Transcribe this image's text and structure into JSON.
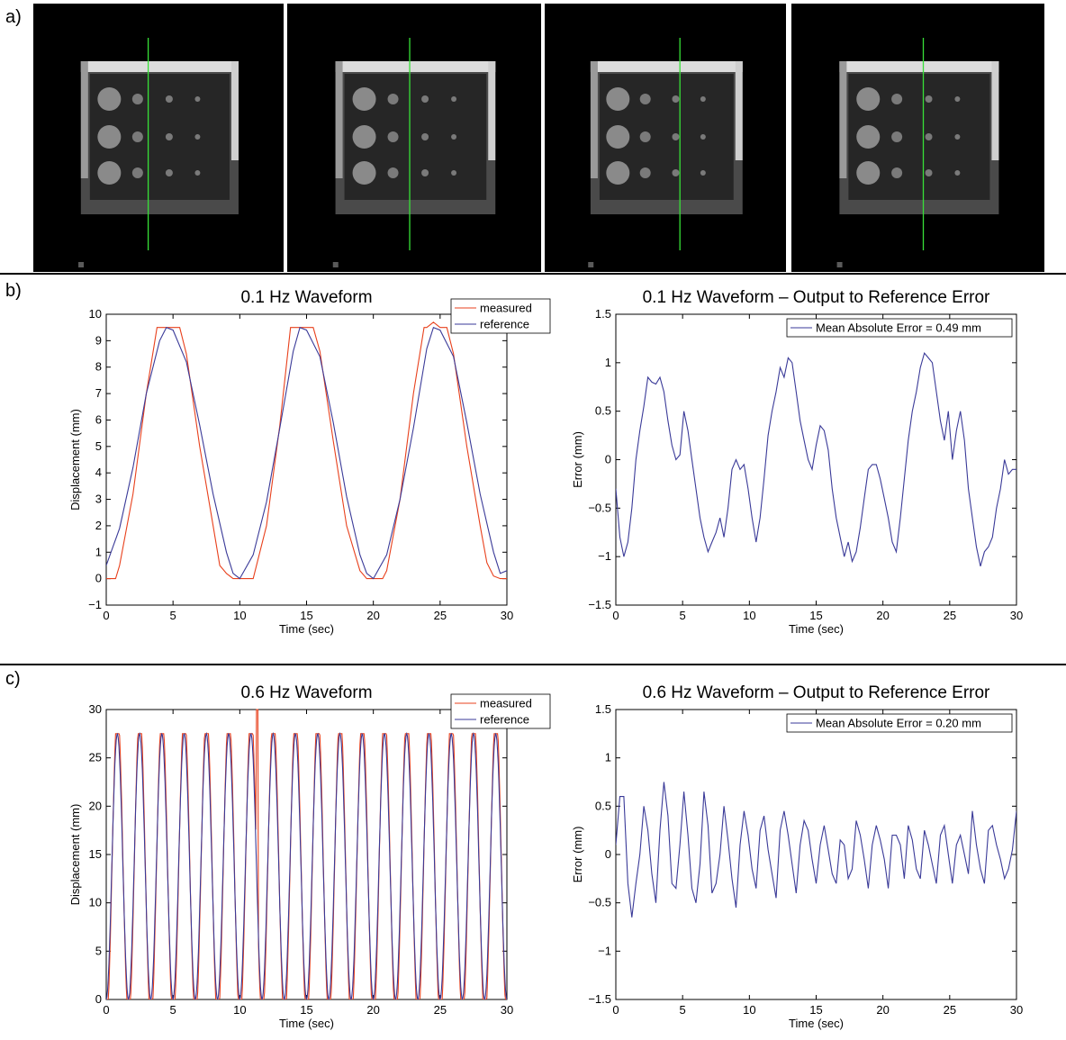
{
  "panels": {
    "a": "a)",
    "b": "b)",
    "c": "c)"
  },
  "mri_images": [
    {
      "green_line_pos": 0.55
    },
    {
      "green_line_pos": 0.58
    },
    {
      "green_line_pos": 0.68
    },
    {
      "green_line_pos": 0.63
    }
  ],
  "colors": {
    "measured": "#e8401c",
    "reference": "#3a3a98",
    "marker": "#38e038"
  },
  "chart_data": [
    {
      "id": "b-left",
      "type": "line",
      "title": "0.1 Hz Waveform",
      "xlabel": "Time (sec)",
      "ylabel": "Displacement (mm)",
      "xlim": [
        0,
        30
      ],
      "ylim": [
        -1,
        10
      ],
      "xticks": [
        "0",
        "5",
        "10",
        "15",
        "20",
        "25",
        "30"
      ],
      "yticks": [
        "−1",
        "0",
        "1",
        "2",
        "3",
        "4",
        "5",
        "6",
        "7",
        "8",
        "9",
        "10"
      ],
      "legend": {
        "position": "top-right",
        "entries": [
          "measured",
          "reference"
        ]
      },
      "series": [
        {
          "name": "measured",
          "x": [
            0,
            0.7,
            1,
            2,
            3,
            3.8,
            4,
            4.5,
            5,
            5.5,
            6,
            7,
            8,
            8.5,
            9,
            9.5,
            10,
            10.5,
            11,
            12,
            13,
            13.8,
            14,
            15,
            15.5,
            16,
            17,
            18,
            19,
            19.5,
            20,
            20.7,
            21,
            22,
            23,
            23.8,
            24,
            24.5,
            25,
            25.5,
            26,
            27,
            28,
            28.5,
            29,
            29.5,
            30
          ],
          "y": [
            0,
            0,
            0.5,
            3.2,
            7.0,
            9.5,
            9.5,
            9.5,
            9.5,
            9.5,
            8.5,
            5.0,
            2.0,
            0.5,
            0.2,
            0,
            0,
            0,
            0,
            2.0,
            5.8,
            9.5,
            9.5,
            9.5,
            9.5,
            8.6,
            5.2,
            2.0,
            0.3,
            0,
            0,
            0,
            0.3,
            3.0,
            7.0,
            9.5,
            9.5,
            9.7,
            9.5,
            9.5,
            8.5,
            5.0,
            2.0,
            0.6,
            0.1,
            0,
            0
          ]
        },
        {
          "name": "reference",
          "x": [
            0,
            1,
            2,
            3,
            4,
            4.5,
            5,
            6,
            7,
            8,
            9,
            9.5,
            10,
            11,
            12,
            13,
            14,
            14.5,
            15,
            16,
            17,
            18,
            19,
            19.5,
            20,
            21,
            22,
            23,
            24,
            24.5,
            25,
            26,
            27,
            28,
            29,
            29.5,
            30
          ],
          "y": [
            0.5,
            1.9,
            4.2,
            7.0,
            9.0,
            9.5,
            9.4,
            8.2,
            5.8,
            3.2,
            1.0,
            0.2,
            0,
            0.9,
            2.9,
            5.7,
            8.6,
            9.5,
            9.4,
            8.4,
            5.9,
            3.1,
            0.9,
            0.2,
            0,
            0.9,
            3.0,
            5.7,
            8.7,
            9.5,
            9.4,
            8.4,
            5.9,
            3.2,
            1.0,
            0.2,
            0.3
          ]
        }
      ]
    },
    {
      "id": "b-right",
      "type": "line",
      "title": "0.1 Hz Waveform – Output to Reference Error",
      "xlabel": "Time (sec)",
      "ylabel": "Error (mm)",
      "xlim": [
        0,
        30
      ],
      "ylim": [
        -1.5,
        1.5
      ],
      "xticks": [
        "0",
        "5",
        "10",
        "15",
        "20",
        "25",
        "30"
      ],
      "yticks": [
        "−1.5",
        "−1",
        "−0.5",
        "0",
        "0.5",
        "1",
        "1.5"
      ],
      "legend": {
        "position": "top-right",
        "entries": [
          "Mean Absolute Error = 0.49 mm"
        ]
      },
      "series": [
        {
          "name": "Mean Absolute Error = 0.49 mm",
          "x": [
            0,
            0.3,
            0.6,
            0.9,
            1.2,
            1.5,
            1.8,
            2.1,
            2.4,
            2.7,
            3.0,
            3.3,
            3.6,
            3.9,
            4.2,
            4.5,
            4.8,
            5.1,
            5.4,
            5.7,
            6.0,
            6.3,
            6.6,
            6.9,
            7.2,
            7.5,
            7.8,
            8.1,
            8.4,
            8.7,
            9.0,
            9.3,
            9.6,
            9.9,
            10.2,
            10.5,
            10.8,
            11.1,
            11.4,
            11.7,
            12.0,
            12.3,
            12.6,
            12.9,
            13.2,
            13.5,
            13.8,
            14.1,
            14.4,
            14.7,
            15.0,
            15.3,
            15.6,
            15.9,
            16.2,
            16.5,
            16.8,
            17.1,
            17.4,
            17.7,
            18.0,
            18.3,
            18.6,
            18.9,
            19.2,
            19.5,
            19.8,
            20.1,
            20.4,
            20.7,
            21.0,
            21.3,
            21.6,
            21.9,
            22.2,
            22.5,
            22.8,
            23.1,
            23.4,
            23.7,
            24.0,
            24.3,
            24.6,
            24.9,
            25.2,
            25.5,
            25.8,
            26.1,
            26.4,
            26.7,
            27.0,
            27.3,
            27.6,
            27.9,
            28.2,
            28.5,
            28.8,
            29.1,
            29.4,
            29.7,
            30
          ],
          "y": [
            -0.3,
            -0.8,
            -1.0,
            -0.85,
            -0.5,
            0.0,
            0.3,
            0.55,
            0.85,
            0.8,
            0.78,
            0.85,
            0.7,
            0.4,
            0.15,
            0.0,
            0.05,
            0.5,
            0.3,
            0.0,
            -0.3,
            -0.6,
            -0.8,
            -0.95,
            -0.85,
            -0.75,
            -0.6,
            -0.8,
            -0.5,
            -0.1,
            0.0,
            -0.1,
            -0.05,
            -0.3,
            -0.6,
            -0.85,
            -0.6,
            -0.2,
            0.25,
            0.5,
            0.7,
            0.95,
            0.85,
            1.05,
            1.0,
            0.7,
            0.4,
            0.2,
            0.0,
            -0.1,
            0.15,
            0.35,
            0.3,
            0.1,
            -0.3,
            -0.6,
            -0.8,
            -1.0,
            -0.85,
            -1.05,
            -0.95,
            -0.7,
            -0.4,
            -0.1,
            -0.05,
            -0.05,
            -0.2,
            -0.4,
            -0.6,
            -0.85,
            -0.95,
            -0.6,
            -0.2,
            0.2,
            0.5,
            0.7,
            0.95,
            1.1,
            1.05,
            1.0,
            0.7,
            0.4,
            0.2,
            0.5,
            0.0,
            0.3,
            0.5,
            0.2,
            -0.3,
            -0.6,
            -0.9,
            -1.1,
            -0.95,
            -0.9,
            -0.8,
            -0.5,
            -0.3,
            0.0,
            -0.15,
            -0.1,
            -0.1
          ]
        }
      ]
    },
    {
      "id": "c-left",
      "type": "line",
      "title": "0.6 Hz Waveform",
      "xlabel": "Time (sec)",
      "ylabel": "Displacement (mm)",
      "xlim": [
        0,
        30
      ],
      "ylim": [
        0,
        30
      ],
      "xticks": [
        "0",
        "5",
        "10",
        "15",
        "20",
        "25",
        "30"
      ],
      "yticks": [
        "0",
        "5",
        "10",
        "15",
        "20",
        "25",
        "30"
      ],
      "legend": {
        "position": "top-right",
        "entries": [
          "measured",
          "reference"
        ]
      },
      "waveform": {
        "frequency_hz": 0.6,
        "amplitude": 13.75,
        "offset": 13.75,
        "peak": 27.5,
        "spike_time": 11.3,
        "spike_value": 30
      }
    },
    {
      "id": "c-right",
      "type": "line",
      "title": "0.6 Hz Waveform – Output to Reference Error",
      "xlabel": "Time (sec)",
      "ylabel": "Error (mm)",
      "xlim": [
        0,
        30
      ],
      "ylim": [
        -1.5,
        1.5
      ],
      "xticks": [
        "0",
        "5",
        "10",
        "15",
        "20",
        "25",
        "30"
      ],
      "yticks": [
        "−1.5",
        "−1",
        "−0.5",
        "0",
        "0.5",
        "1",
        "1.5"
      ],
      "legend": {
        "position": "top-right",
        "entries": [
          "Mean Absolute Error = 0.20 mm"
        ]
      },
      "series": [
        {
          "name": "Mean Absolute Error = 0.20 mm",
          "x": [
            0,
            0.3,
            0.6,
            0.9,
            1.2,
            1.5,
            1.8,
            2.1,
            2.4,
            2.7,
            3.0,
            3.3,
            3.6,
            3.9,
            4.2,
            4.5,
            4.8,
            5.1,
            5.4,
            5.7,
            6.0,
            6.3,
            6.6,
            6.9,
            7.2,
            7.5,
            7.8,
            8.1,
            8.4,
            8.7,
            9.0,
            9.3,
            9.6,
            9.9,
            10.2,
            10.5,
            10.8,
            11.1,
            11.4,
            11.7,
            12.0,
            12.3,
            12.6,
            12.9,
            13.2,
            13.5,
            13.8,
            14.1,
            14.4,
            14.7,
            15.0,
            15.3,
            15.6,
            15.9,
            16.2,
            16.5,
            16.8,
            17.1,
            17.4,
            17.7,
            18.0,
            18.3,
            18.6,
            18.9,
            19.2,
            19.5,
            19.8,
            20.1,
            20.4,
            20.7,
            21.0,
            21.3,
            21.6,
            21.9,
            22.2,
            22.5,
            22.8,
            23.1,
            23.4,
            23.7,
            24.0,
            24.3,
            24.6,
            24.9,
            25.2,
            25.5,
            25.8,
            26.1,
            26.4,
            26.7,
            27.0,
            27.3,
            27.6,
            27.9,
            28.2,
            28.5,
            28.8,
            29.1,
            29.4,
            29.7,
            30
          ],
          "y": [
            0.1,
            0.6,
            0.6,
            -0.3,
            -0.65,
            -0.3,
            0.0,
            0.5,
            0.25,
            -0.2,
            -0.5,
            0.25,
            0.75,
            0.4,
            -0.3,
            -0.35,
            0.1,
            0.65,
            0.2,
            -0.35,
            -0.5,
            -0.1,
            0.65,
            0.3,
            -0.4,
            -0.3,
            0.0,
            0.5,
            0.15,
            -0.25,
            -0.55,
            0.1,
            0.45,
            0.2,
            -0.15,
            -0.35,
            0.25,
            0.4,
            0.05,
            -0.2,
            -0.45,
            0.25,
            0.45,
            0.2,
            -0.1,
            -0.4,
            0.1,
            0.35,
            0.25,
            -0.05,
            -0.3,
            0.1,
            0.3,
            0.05,
            -0.2,
            -0.3,
            0.15,
            0.1,
            -0.25,
            -0.15,
            0.35,
            0.2,
            -0.05,
            -0.35,
            0.1,
            0.3,
            0.15,
            -0.05,
            -0.35,
            0.2,
            0.2,
            0.1,
            -0.25,
            0.3,
            0.15,
            -0.15,
            -0.25,
            0.25,
            0.1,
            -0.1,
            -0.3,
            0.2,
            0.3,
            0.0,
            -0.3,
            0.1,
            0.2,
            0.0,
            -0.2,
            0.45,
            0.1,
            -0.15,
            -0.3,
            0.25,
            0.3,
            0.1,
            -0.05,
            -0.25,
            -0.15,
            0.05,
            0.45
          ]
        }
      ]
    }
  ]
}
